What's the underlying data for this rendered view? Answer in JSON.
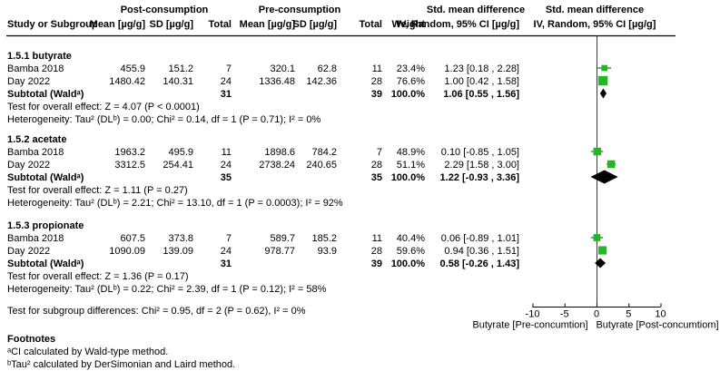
{
  "header": {
    "post_group": "Post-consumption",
    "pre_group": "Pre-consumption",
    "smd_col_text": "Std. mean difference",
    "smd_col_plot": "Std. mean difference",
    "columns": {
      "study": "Study or Subgroup",
      "mean_post": "Mean [µg/g]",
      "sd_post": "SD [µg/g]",
      "total_post": "Total",
      "mean_pre": "Mean [µg/g]",
      "sd_pre": "SD [µg/g]",
      "total_pre": "Total",
      "weight": "Weight",
      "ci_text": "IV, Random, 95% CI [µg/g]",
      "ci_plot": "IV, Random, 95% CI [µg/g]"
    }
  },
  "table": {
    "groups": [
      {
        "title": "1.5.1 butyrate",
        "studies": [
          {
            "study": "Bamba 2018",
            "mean_post": "455.9",
            "sd_post": "151.2",
            "total_post": "7",
            "mean_pre": "320.1",
            "sd_pre": "62.8",
            "total_pre": "11",
            "weight": "23.4%",
            "ci": "1.23 [0.18 , 2.28]"
          },
          {
            "study": "Day 2022",
            "mean_post": "1480.42",
            "sd_post": "140.31",
            "total_post": "24",
            "mean_pre": "1336.48",
            "sd_pre": "142.36",
            "total_pre": "28",
            "weight": "76.6%",
            "ci": "1.00 [0.42 , 1.58]"
          }
        ],
        "subtotal": {
          "label": "Subtotal (Waldᵃ)",
          "total_post": "31",
          "total_pre": "39",
          "weight": "100.0%",
          "ci": "1.06 [0.55 , 1.56]"
        },
        "overall_test": "Test for overall effect: Z = 4.07 (P < 0.0001)",
        "heterogeneity": "Heterogeneity: Tau² (DLᵇ) = 0.00; Chi² = 0.14, df = 1 (P = 0.71); I² = 0%"
      },
      {
        "title": "1.5.2 acetate",
        "studies": [
          {
            "study": "Bamba 2018",
            "mean_post": "1963.2",
            "sd_post": "495.9",
            "total_post": "11",
            "mean_pre": "1898.6",
            "sd_pre": "784.2",
            "total_pre": "7",
            "weight": "48.9%",
            "ci": "0.10 [-0.85 , 1.05]"
          },
          {
            "study": "Day 2022",
            "mean_post": "3312.5",
            "sd_post": "254.41",
            "total_post": "24",
            "mean_pre": "2738.24",
            "sd_pre": "240.65",
            "total_pre": "28",
            "weight": "51.1%",
            "ci": "2.29 [1.58 , 3.00]"
          }
        ],
        "subtotal": {
          "label": "Subtotal (Waldᵃ)",
          "total_post": "35",
          "total_pre": "35",
          "weight": "100.0%",
          "ci": "1.22 [-0.93 , 3.36]"
        },
        "overall_test": "Test for overall effect: Z = 1.11 (P = 0.27)",
        "heterogeneity": "Heterogeneity: Tau² (DLᵇ) = 2.21; Chi² = 13.10, df = 1 (P = 0.0003); I² = 92%"
      },
      {
        "title": "1.5.3 propionate",
        "studies": [
          {
            "study": "Bamba 2018",
            "mean_post": "607.5",
            "sd_post": "373.8",
            "total_post": "7",
            "mean_pre": "589.7",
            "sd_pre": "185.2",
            "total_pre": "11",
            "weight": "40.4%",
            "ci": "0.06 [-0.89 , 1.01]"
          },
          {
            "study": "Day 2022",
            "mean_post": "1090.09",
            "sd_post": "139.09",
            "total_post": "24",
            "mean_pre": "978.77",
            "sd_pre": "93.9",
            "total_pre": "28",
            "weight": "59.6%",
            "ci": "0.94 [0.36 , 1.51]"
          }
        ],
        "subtotal": {
          "label": "Subtotal (Waldᵃ)",
          "total_post": "31",
          "total_pre": "39",
          "weight": "100.0%",
          "ci": "0.58 [-0.26 , 1.43]"
        },
        "overall_test": "Test for overall effect: Z = 1.36 (P = 0.17)",
        "heterogeneity": "Heterogeneity: Tau² (DLᵇ) = 0.22; Chi² = 2.39, df = 1 (P = 0.12); I² = 58%"
      }
    ],
    "subgroup_test": "Test for subgroup differences: Chi² = 0.95, df = 2 (P = 0.62), I² = 0%"
  },
  "footnotes": {
    "title": "Footnotes",
    "a": "ᵃCI calculated by Wald-type method.",
    "b": "ᵇTau² calculated by DerSimonian and Laird method."
  },
  "colors": {
    "marker_green": "#23B823",
    "diamond_black": "#000000",
    "ci_line": "#4d4d4d",
    "axis_line": "#000000"
  },
  "chart_data": {
    "type": "scatter",
    "subtype": "forest-plot",
    "title": "Std. mean difference  IV, Random, 95% CI [µg/g]",
    "x_axis": {
      "min": -10,
      "max": 10,
      "ticks": [
        -10,
        -5,
        0,
        5,
        10
      ],
      "zero_line": 0,
      "label_left": "Butyrate [Pre-concumtion]",
      "label_right": "Butyrate [Post-concumtiom]"
    },
    "groups": [
      {
        "name": "1.5.1 butyrate",
        "studies": [
          {
            "study": "Bamba 2018",
            "smd": 1.23,
            "ci_low": 0.18,
            "ci_high": 2.28,
            "weight_pct": 23.4
          },
          {
            "study": "Day 2022",
            "smd": 1.0,
            "ci_low": 0.42,
            "ci_high": 1.58,
            "weight_pct": 76.6
          }
        ],
        "subtotal": {
          "smd": 1.06,
          "ci_low": 0.55,
          "ci_high": 1.56,
          "weight_pct": 100.0
        },
        "z": 4.07,
        "p_overall": "< 0.0001",
        "tau2": 0.0,
        "chi2": 0.14,
        "df": 1,
        "p_het": "0.71",
        "i2": "0%"
      },
      {
        "name": "1.5.2 acetate",
        "studies": [
          {
            "study": "Bamba 2018",
            "smd": 0.1,
            "ci_low": -0.85,
            "ci_high": 1.05,
            "weight_pct": 48.9
          },
          {
            "study": "Day 2022",
            "smd": 2.29,
            "ci_low": 1.58,
            "ci_high": 3.0,
            "weight_pct": 51.1
          }
        ],
        "subtotal": {
          "smd": 1.22,
          "ci_low": -0.93,
          "ci_high": 3.36,
          "weight_pct": 100.0
        },
        "z": 1.11,
        "p_overall": "0.27",
        "tau2": 2.21,
        "chi2": 13.1,
        "df": 1,
        "p_het": "0.0003",
        "i2": "92%"
      },
      {
        "name": "1.5.3 propionate",
        "studies": [
          {
            "study": "Bamba 2018",
            "smd": 0.06,
            "ci_low": -0.89,
            "ci_high": 1.01,
            "weight_pct": 40.4
          },
          {
            "study": "Day 2022",
            "smd": 0.94,
            "ci_low": 0.36,
            "ci_high": 1.51,
            "weight_pct": 59.6
          }
        ],
        "subtotal": {
          "smd": 0.58,
          "ci_low": -0.26,
          "ci_high": 1.43,
          "weight_pct": 100.0
        },
        "z": 1.36,
        "p_overall": "0.17",
        "tau2": 0.22,
        "chi2": 2.39,
        "df": 1,
        "p_het": "0.12",
        "i2": "58%"
      }
    ],
    "subgroup_difference": {
      "chi2": 0.95,
      "df": 2,
      "p": 0.62,
      "i2": "0%"
    }
  }
}
